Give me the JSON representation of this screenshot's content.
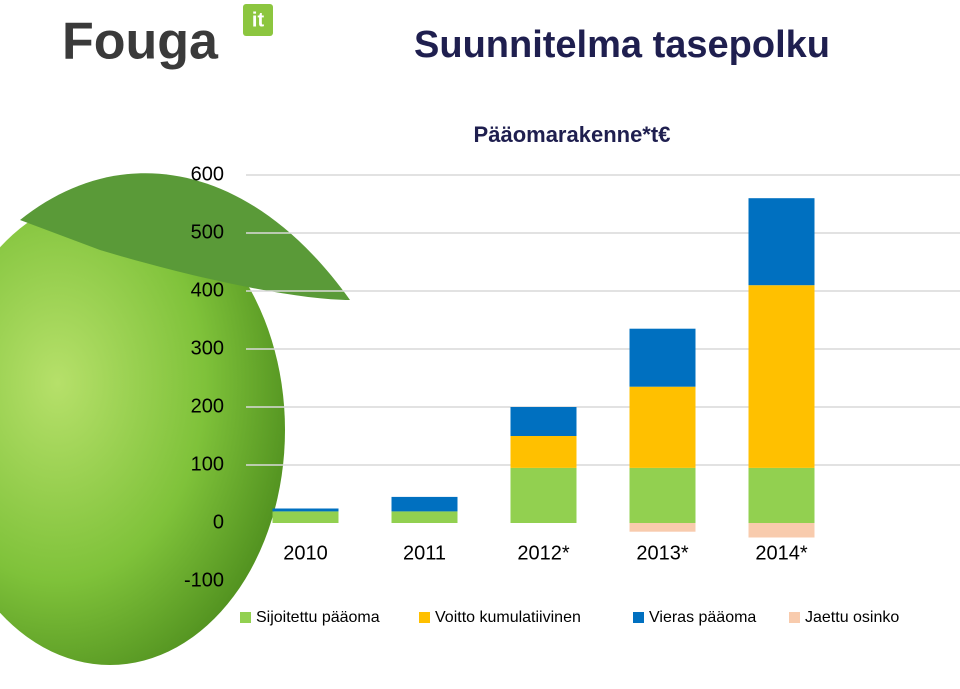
{
  "logo": {
    "name": "Fouga",
    "badge": "it"
  },
  "chart_data": {
    "type": "stacked_bar",
    "title": "Suunnitelma tasepolku",
    "subtitle": "Pääomarakenne*t€",
    "categories": [
      "2010",
      "2011",
      "2012*",
      "2013*",
      "2014*"
    ],
    "series": [
      {
        "name": "Sijoitettu pääoma",
        "color": "#92d050",
        "values": [
          20,
          20,
          95,
          95,
          95
        ]
      },
      {
        "name": "Voitto kumulatiivinen",
        "color": "#ffc000",
        "values": [
          0,
          0,
          55,
          140,
          315
        ]
      },
      {
        "name": "Vieras pääoma",
        "color": "#0070c0",
        "values": [
          5,
          25,
          50,
          100,
          150
        ]
      },
      {
        "name": "Jaettu  osinko",
        "color": "#f8cbad",
        "values": [
          0,
          0,
          0,
          -15,
          -25
        ]
      }
    ],
    "ylim": [
      -100,
      600
    ],
    "yticks": [
      -100,
      0,
      100,
      200,
      300,
      400,
      500,
      600
    ],
    "grid": true,
    "legend": "bottom"
  }
}
